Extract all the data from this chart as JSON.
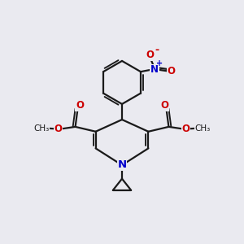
{
  "bg_color": "#eaeaf0",
  "bond_color": "#1a1a1a",
  "bond_width": 1.6,
  "N_color": "#0000cc",
  "O_color": "#cc0000",
  "figsize": [
    3.0,
    3.0
  ],
  "dpi": 100,
  "xlim": [
    0,
    10
  ],
  "ylim": [
    0,
    10
  ]
}
